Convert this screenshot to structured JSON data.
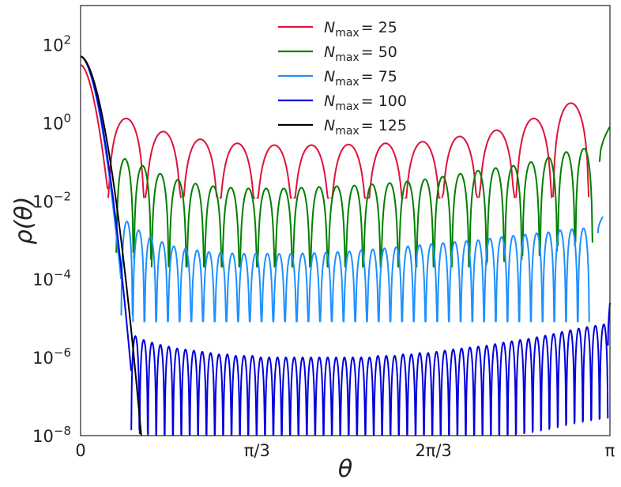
{
  "chart_data": {
    "type": "line",
    "title": "",
    "xlabel": "θ",
    "ylabel": "ρ(θ)",
    "x_range": [
      0,
      3.14159
    ],
    "y_scale": "log",
    "ylim": [
      1e-08,
      1000
    ],
    "x_ticks": [
      {
        "value": 0,
        "label": "0"
      },
      {
        "value": 1.0472,
        "label": "π/3"
      },
      {
        "value": 2.0944,
        "label": "2π/3"
      },
      {
        "value": 3.14159,
        "label": "π"
      }
    ],
    "y_ticks": [
      {
        "value": 100,
        "base": "10",
        "exp": "2"
      },
      {
        "value": 1,
        "base": "10",
        "exp": "0"
      },
      {
        "value": 0.01,
        "base": "10",
        "exp": "−2"
      },
      {
        "value": 0.0001,
        "base": "10",
        "exp": "−4"
      },
      {
        "value": 1e-06,
        "base": "10",
        "exp": "−6"
      },
      {
        "value": 1e-08,
        "base": "10",
        "exp": "−8"
      }
    ],
    "grid": false,
    "legend_position": "top-center",
    "series": [
      {
        "name": "N_max = 25",
        "legend_sym": "N",
        "legend_sub": "max",
        "legend_val": "= 25",
        "color": "#dc143c",
        "start": {
          "x": 0.0,
          "y": 30
        },
        "cliff": {
          "x_end": 0.16,
          "y_end": 0.02
        },
        "arches": {
          "x_start": 0.16,
          "x_end": 3.02,
          "count": 13,
          "peaks": [
            1.3,
            0.6,
            0.38,
            0.3,
            0.27,
            0.27,
            0.28,
            0.3,
            0.33,
            0.45,
            0.65,
            1.3,
            3.2
          ],
          "trough": 0.012
        }
      },
      {
        "name": "N_max = 50",
        "legend_sym": "N",
        "legend_sub": "max",
        "legend_val": "= 50",
        "color": "#008000",
        "start": {
          "x": 0.0,
          "y": 50
        },
        "cliff": {
          "x_end": 0.21,
          "y_end": 0.0018
        },
        "arches": {
          "x_start": 0.21,
          "x_end": 3.04,
          "count": 27,
          "peaks": [
            0.12,
            0.08,
            0.05,
            0.035,
            0.028,
            0.024,
            0.022,
            0.021,
            0.021,
            0.021,
            0.022,
            0.023,
            0.024,
            0.025,
            0.027,
            0.029,
            0.032,
            0.036,
            0.042,
            0.05,
            0.06,
            0.07,
            0.08,
            0.1,
            0.13,
            0.18,
            0.22
          ],
          "trough": 0.0002
        },
        "tail": {
          "x_start": 3.08,
          "x_end": 3.14159,
          "y_start": 0.1,
          "y_end": 0.8
        }
      },
      {
        "name": "N_max = 75",
        "legend_sym": "N",
        "legend_sub": "max",
        "legend_val": "= 75",
        "color": "#1e90ff",
        "start": {
          "x": 0.0,
          "y": 50
        },
        "cliff": {
          "x_end": 0.24,
          "y_end": 0.0001
        },
        "arches": {
          "x_start": 0.24,
          "x_end": 3.02,
          "count": 40,
          "peaks": [
            0.003,
            0.0018,
            0.0012,
            0.0009,
            0.0007,
            0.0006,
            0.00055,
            0.0005,
            0.00048,
            0.00046,
            0.00045,
            0.00045,
            0.00045,
            0.00045,
            0.00045,
            0.00046,
            0.00047,
            0.00048,
            0.0005,
            0.00052,
            0.00055,
            0.00058,
            0.00062,
            0.00066,
            0.0007,
            0.00075,
            0.0008,
            0.00085,
            0.0009,
            0.00095,
            0.001,
            0.0011,
            0.0012,
            0.0013,
            0.0014,
            0.0015,
            0.0016,
            0.0018,
            0.0019,
            0.002
          ],
          "trough": 8e-06
        },
        "tail": {
          "x_start": 3.07,
          "x_end": 3.1,
          "y_start": 0.0015,
          "y_end": 0.004
        }
      },
      {
        "name": "N_max = 100",
        "legend_sym": "N",
        "legend_sub": "max",
        "legend_val": "= 100",
        "color": "#0000dd",
        "start": {
          "x": 0.0,
          "y": 50
        },
        "cliff": {
          "x_end": 0.3,
          "y_end": 4.5e-07
        },
        "arches": {
          "x_start": 0.3,
          "x_end": 3.13,
          "count": 57,
          "peaks": [
            3.5e-06,
            2.8e-06,
            2.4e-06,
            2.1e-06,
            1.9e-06,
            1.7e-06,
            1.6e-06,
            1.5e-06,
            1.4e-06,
            1.3e-06,
            1.2e-06,
            1.2e-06,
            1.1e-06,
            1.1e-06,
            1.1e-06,
            1e-06,
            1e-06,
            1e-06,
            1e-06,
            1e-06,
            1e-06,
            1e-06,
            1e-06,
            1e-06,
            1e-06,
            1e-06,
            1e-06,
            1e-06,
            1e-06,
            1.1e-06,
            1.1e-06,
            1.1e-06,
            1.2e-06,
            1.2e-06,
            1.3e-06,
            1.3e-06,
            1.4e-06,
            1.5e-06,
            1.6e-06,
            1.7e-06,
            1.8e-06,
            1.9e-06,
            2e-06,
            2.2e-06,
            2.4e-06,
            2.6e-06,
            2.8e-06,
            3e-06,
            3.3e-06,
            3.6e-06,
            4e-06,
            4.5e-06,
            5e-06,
            5.5e-06,
            6e-06,
            6.5e-06,
            7e-06
          ],
          "trough": 5e-09
        },
        "tail": {
          "x_start": 3.13,
          "x_end": 3.14159,
          "y_start": 2e-06,
          "y_end": 2.5e-05
        }
      },
      {
        "name": "N_max = 125",
        "legend_sym": "N",
        "legend_sub": "max",
        "legend_val": "= 125",
        "color": "#000000",
        "start": {
          "x": 0.0,
          "y": 50
        },
        "cliff": {
          "x_end": 0.36,
          "y_end": 1e-08
        }
      }
    ]
  }
}
